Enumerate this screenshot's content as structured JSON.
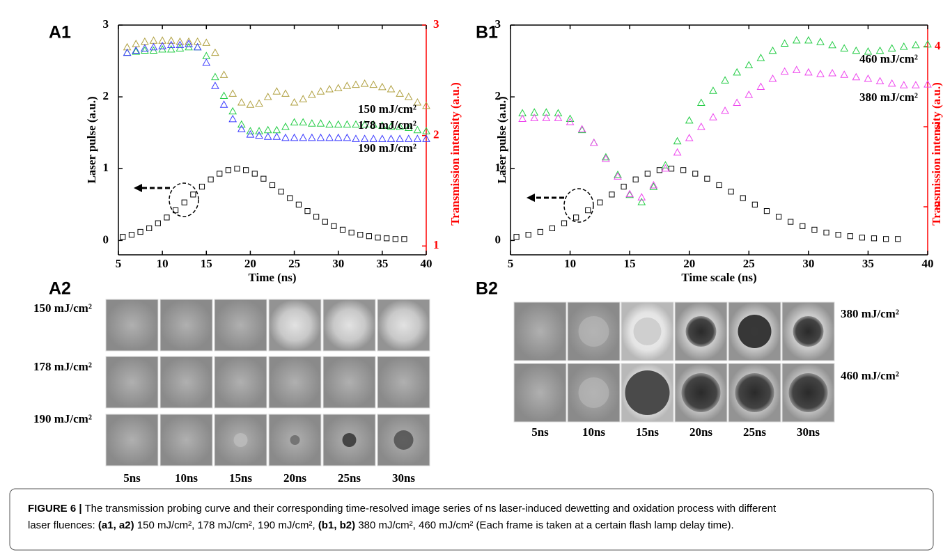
{
  "chart_data": [
    {
      "type": "scatter",
      "panel_label": "A1",
      "xlabel": "Time (ns)",
      "ylabel": "Laser pulse (a.u.)",
      "y2label": "Transmission intensity (a.u.)",
      "xlim": [
        5,
        40
      ],
      "xticks": [
        5,
        10,
        15,
        20,
        25,
        30,
        35,
        40
      ],
      "ylim": [
        -0.2,
        3
      ],
      "yticks": [
        0,
        1,
        2,
        3
      ],
      "y2lim": [
        0.92,
        3
      ],
      "y2ticks": [
        1,
        2,
        3
      ],
      "y2color": "#ff0000",
      "series": [
        {
          "color": "#000000",
          "marker": "square",
          "x": [
            5.5,
            6.5,
            7.5,
            8.5,
            9.5,
            10.5,
            11.5,
            12.5,
            13.5,
            14.5,
            15.5,
            16.5,
            17.5,
            18.5,
            19.5,
            20.5,
            21.5,
            22.5,
            23.5,
            24.5,
            25.5,
            26.5,
            27.5,
            28.5,
            29.5,
            30.5,
            31.5,
            32.5,
            33.5,
            34.5,
            35.5,
            36.5,
            37.5
          ],
          "values": [
            0.05,
            0.08,
            0.12,
            0.17,
            0.24,
            0.32,
            0.42,
            0.53,
            0.64,
            0.75,
            0.85,
            0.93,
            0.98,
            1.0,
            0.98,
            0.93,
            0.86,
            0.77,
            0.68,
            0.59,
            0.5,
            0.41,
            0.33,
            0.26,
            0.2,
            0.15,
            0.11,
            0.08,
            0.06,
            0.04,
            0.03,
            0.02,
            0.02
          ]
        },
        {
          "name": "150 mJ/cm²",
          "color": "#b0a040",
          "marker": "triangle",
          "axis": "y2",
          "x": [
            6,
            7,
            8,
            9,
            10,
            11,
            12,
            13,
            14,
            15,
            16,
            17,
            18,
            19,
            20,
            21,
            22,
            23,
            24,
            25,
            26,
            27,
            28,
            29,
            30,
            31,
            32,
            33,
            34,
            35,
            36,
            37,
            38,
            39,
            40
          ],
          "values": [
            2.8,
            2.83,
            2.85,
            2.86,
            2.86,
            2.86,
            2.85,
            2.85,
            2.85,
            2.84,
            2.75,
            2.55,
            2.38,
            2.3,
            2.28,
            2.29,
            2.35,
            2.4,
            2.38,
            2.3,
            2.33,
            2.37,
            2.4,
            2.42,
            2.43,
            2.45,
            2.46,
            2.47,
            2.46,
            2.44,
            2.42,
            2.38,
            2.35,
            2.3,
            2.27
          ]
        },
        {
          "name": "178 mJ/cm²",
          "color": "#22cc44",
          "marker": "triangle",
          "axis": "y2",
          "x": [
            6,
            7,
            8,
            9,
            10,
            11,
            12,
            13,
            14,
            15,
            16,
            17,
            18,
            19,
            20,
            21,
            22,
            23,
            24,
            25,
            26,
            27,
            28,
            29,
            30,
            31,
            32,
            33,
            34,
            35,
            36,
            37,
            38,
            39,
            40
          ],
          "values": [
            2.75,
            2.76,
            2.77,
            2.77,
            2.78,
            2.78,
            2.79,
            2.8,
            2.8,
            2.72,
            2.53,
            2.36,
            2.22,
            2.1,
            2.04,
            2.04,
            2.05,
            2.05,
            2.08,
            2.12,
            2.12,
            2.11,
            2.11,
            2.1,
            2.1,
            2.1,
            2.1,
            2.1,
            2.1,
            2.09,
            2.08,
            2.08,
            2.07,
            2.05,
            2.04
          ]
        },
        {
          "name": "190 mJ/cm²",
          "color": "#3a3aff",
          "marker": "triangle",
          "axis": "y2",
          "x": [
            6,
            7,
            8,
            9,
            10,
            11,
            12,
            13,
            14,
            15,
            16,
            17,
            18,
            19,
            20,
            21,
            22,
            23,
            24,
            25,
            26,
            27,
            28,
            29,
            30,
            31,
            32,
            33,
            34,
            35,
            36,
            37,
            38,
            39,
            40
          ],
          "values": [
            2.75,
            2.77,
            2.79,
            2.8,
            2.81,
            2.82,
            2.82,
            2.83,
            2.8,
            2.66,
            2.45,
            2.28,
            2.15,
            2.06,
            2.01,
            2.0,
            1.99,
            1.99,
            1.98,
            1.98,
            1.98,
            1.98,
            1.98,
            1.98,
            1.98,
            1.98,
            1.97,
            1.97,
            1.97,
            1.97,
            1.97,
            1.97,
            1.97,
            1.97,
            1.97
          ]
        }
      ]
    },
    {
      "type": "scatter",
      "panel_label": "B1",
      "xlabel": "Time scale (ns)",
      "ylabel": "Laser pulse (a.u.)",
      "y2label": "Transmission intensity (a.u.)",
      "xlim": [
        5,
        40
      ],
      "xticks": [
        5,
        10,
        15,
        20,
        25,
        30,
        35,
        40
      ],
      "ylim": [
        -0.2,
        3
      ],
      "yticks": [
        0,
        1,
        2,
        3
      ],
      "y2lim": [
        1.4,
        4.27
      ],
      "y2ticks": [
        2,
        3,
        4
      ],
      "y2color": "#ff0000",
      "series": [
        {
          "color": "#000000",
          "marker": "square",
          "x": [
            5.5,
            6.5,
            7.5,
            8.5,
            9.5,
            10.5,
            11.5,
            12.5,
            13.5,
            14.5,
            15.5,
            16.5,
            17.5,
            18.5,
            19.5,
            20.5,
            21.5,
            22.5,
            23.5,
            24.5,
            25.5,
            26.5,
            27.5,
            28.5,
            29.5,
            30.5,
            31.5,
            32.5,
            33.5,
            34.5,
            35.5,
            36.5,
            37.5
          ],
          "values": [
            0.05,
            0.08,
            0.12,
            0.17,
            0.24,
            0.32,
            0.42,
            0.53,
            0.64,
            0.75,
            0.85,
            0.93,
            0.98,
            1.0,
            0.98,
            0.93,
            0.86,
            0.77,
            0.68,
            0.59,
            0.5,
            0.41,
            0.33,
            0.26,
            0.2,
            0.15,
            0.11,
            0.08,
            0.06,
            0.04,
            0.03,
            0.02,
            0.02
          ]
        },
        {
          "name": "460 mJ/cm²",
          "color": "#22cc44",
          "marker": "triangle",
          "axis": "y2",
          "x": [
            6,
            7,
            8,
            9,
            10,
            11,
            12,
            13,
            14,
            15,
            16,
            17,
            18,
            19,
            20,
            21,
            22,
            23,
            24,
            25,
            26,
            27,
            28,
            29,
            30,
            31,
            32,
            33,
            34,
            35,
            36,
            37,
            38,
            39,
            40
          ],
          "values": [
            3.17,
            3.18,
            3.18,
            3.17,
            3.1,
            2.96,
            2.8,
            2.62,
            2.4,
            2.15,
            2.06,
            2.25,
            2.52,
            2.82,
            3.08,
            3.3,
            3.45,
            3.58,
            3.68,
            3.77,
            3.86,
            3.95,
            4.04,
            4.08,
            4.08,
            4.06,
            4.02,
            3.98,
            3.95,
            3.94,
            3.95,
            3.98,
            4.0,
            4.02,
            4.03
          ]
        },
        {
          "name": "380 mJ/cm²",
          "color": "#ee44ee",
          "marker": "triangle",
          "axis": "y2",
          "x": [
            6,
            7,
            8,
            9,
            10,
            11,
            12,
            13,
            14,
            15,
            16,
            17,
            18,
            19,
            20,
            21,
            22,
            23,
            24,
            25,
            26,
            27,
            28,
            29,
            30,
            31,
            32,
            33,
            34,
            35,
            36,
            37,
            38,
            39,
            40
          ],
          "values": [
            3.1,
            3.11,
            3.11,
            3.11,
            3.06,
            2.97,
            2.8,
            2.6,
            2.38,
            2.16,
            2.12,
            2.27,
            2.48,
            2.68,
            2.86,
            3.0,
            3.12,
            3.2,
            3.3,
            3.4,
            3.5,
            3.6,
            3.69,
            3.71,
            3.68,
            3.66,
            3.67,
            3.65,
            3.62,
            3.6,
            3.57,
            3.54,
            3.52,
            3.52,
            3.53
          ]
        }
      ]
    }
  ],
  "image_panels": [
    {
      "label": "A2",
      "rows": [
        "150 mJ/cm²",
        "178 mJ/cm²",
        "190 mJ/cm²"
      ],
      "columns": [
        "5ns",
        "10ns",
        "15ns",
        "20ns",
        "25ns",
        "30ns"
      ]
    },
    {
      "label": "B2",
      "rows": [
        "380 mJ/cm²",
        "460 mJ/cm²"
      ],
      "columns": [
        "5ns",
        "10ns",
        "15ns",
        "20ns",
        "25ns",
        "30ns"
      ]
    }
  ],
  "caption": {
    "label": "FIGURE 6 |",
    "text1": " The transmission probing curve and their corresponding time-resolved image series of ns laser-induced dewetting and oxidation process with different",
    "text2": "laser fluences: ",
    "ref1": "(a1, a2)",
    "text3": " 150 mJ/cm², 178 mJ/cm², 190 mJ/cm², ",
    "ref2": "(b1, b2)",
    "text4": " 380 mJ/cm², 460 mJ/cm² (Each frame is taken at a certain flash lamp delay time)."
  }
}
